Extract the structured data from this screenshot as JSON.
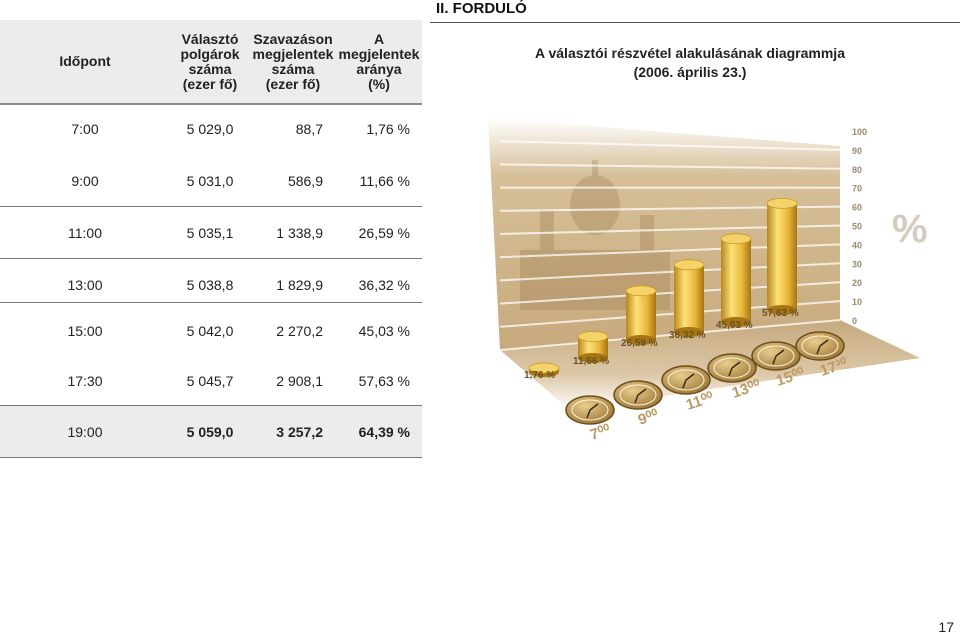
{
  "round_title": "II. FORDULÓ",
  "table": {
    "headers": [
      "Időpont",
      "Választó\npolgárok\nszáma\n(ezer fő)",
      "Szavazáson\nmegjelentek\nszáma\n(ezer fő)",
      "A\nmegjelentek\naránya\n(%)"
    ],
    "rows": [
      {
        "time": "7:00",
        "voters": "5 029,0",
        "turnout": "88,7",
        "ratio": "1,76 %"
      },
      {
        "time": "9:00",
        "voters": "5 031,0",
        "turnout": "586,9",
        "ratio": "11,66 %"
      },
      {
        "time": "11:00",
        "voters": "5 035,1",
        "turnout": "1 338,9",
        "ratio": "26,59 %"
      },
      {
        "time": "13:00",
        "voters": "5 038,8",
        "turnout": "1 829,9",
        "ratio": "36,32 %"
      },
      {
        "time": "15:00",
        "voters": "5 042,0",
        "turnout": "2 270,2",
        "ratio": "45,03 %"
      },
      {
        "time": "17:30",
        "voters": "5 045,7",
        "turnout": "2 908,1",
        "ratio": "57,63 %"
      },
      {
        "time": "19:00",
        "voters": "5 059,0",
        "turnout": "3 257,2",
        "ratio": "64,39 %"
      }
    ]
  },
  "chart_title_line1": "A választói részvétel alakulásának diagrammja",
  "chart_title_line2": "(2006. április 23.)",
  "chart_data": {
    "type": "bar",
    "categories": [
      "7:00",
      "9:00",
      "11:00",
      "13:00",
      "15:00",
      "17:30"
    ],
    "clock_labels": [
      "7⁰⁰",
      "9⁰⁰",
      "11⁰⁰",
      "13⁰⁰",
      "15⁰⁰",
      "17³⁰"
    ],
    "values": [
      1.76,
      11.66,
      26.59,
      36.32,
      45.03,
      57.63
    ],
    "value_labels": [
      "1,76 %",
      "11,66 %",
      "26,59 %",
      "36,32 %",
      "45,03 %",
      "57,63 %"
    ],
    "ylim": [
      0,
      100
    ],
    "yticks": [
      "0",
      "10",
      "20",
      "30",
      "40",
      "50",
      "60",
      "70",
      "80",
      "90",
      "100"
    ],
    "unit_label": "%",
    "colors": {
      "gold": "#e8b83a",
      "gold_dark": "#b8861b",
      "wall": "#c9ae86",
      "floor": "#b39a78"
    }
  },
  "page_number": "17"
}
